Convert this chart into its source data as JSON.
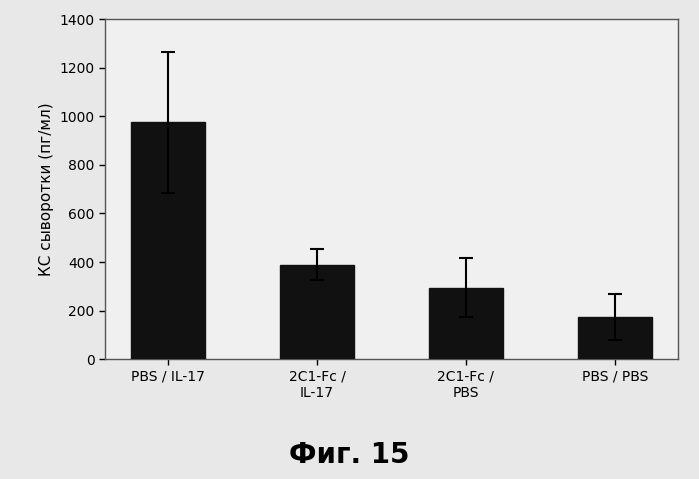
{
  "categories": [
    "PBS / IL-17",
    "2C1-Fc /\nIL-17",
    "2C1-Fc /\nPBS",
    "PBS / PBS"
  ],
  "values": [
    975,
    390,
    295,
    175
  ],
  "errors": [
    290,
    65,
    120,
    95
  ],
  "bar_color": "#111111",
  "ylabel": "КС сыворотки (пг/мл)",
  "ylim": [
    0,
    1400
  ],
  "yticks": [
    0,
    200,
    400,
    600,
    800,
    1000,
    1200,
    1400
  ],
  "caption": "Фиг. 15",
  "fig_background": "#e8e8e8",
  "plot_background": "#f0f0f0",
  "border_color": "#888888",
  "bar_width": 0.5
}
